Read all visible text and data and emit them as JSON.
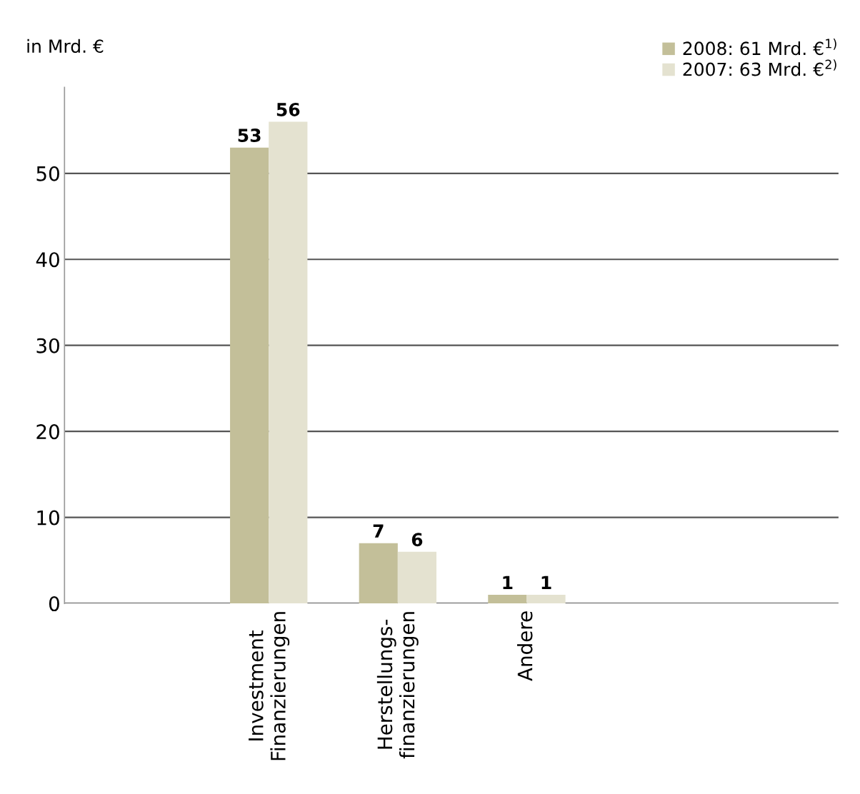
{
  "chart_data": {
    "type": "bar",
    "annotations": [
      "in Mrd. €"
    ],
    "categories": [
      "Investment\nFinanzierungen",
      "Herstellungs-\nfinanzierungen",
      "Andere"
    ],
    "series": [
      {
        "name": "2008: 61 Mrd. €$^{1)}$",
        "color": "#c3bf99",
        "values": [
          53,
          7,
          1
        ]
      },
      {
        "name": "2007: 63 Mrd. €$^{2)}$",
        "color": "#e4e2d0",
        "values": [
          56,
          6,
          1
        ]
      }
    ],
    "ylim": [
      0,
      60
    ],
    "yticks": [
      0,
      10,
      20,
      30,
      40,
      50
    ],
    "grid": "y",
    "legend": "top right",
    "data_labels": true
  }
}
